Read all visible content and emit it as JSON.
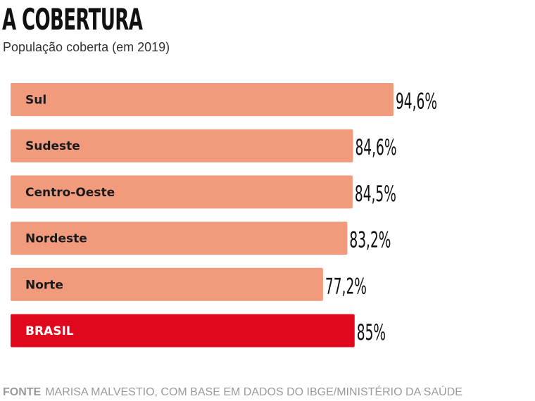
{
  "header": {
    "title": "A COBERTURA",
    "subtitle": "População coberta (em 2019)"
  },
  "footer": {
    "label": "FONTE",
    "text": "MARISA MALVESTIO, COM BASE EM DADOS DO IBGE/MINISTÉRIO DA SAÚDE"
  },
  "colors": {
    "bar": "#f29a7c",
    "highlight": "#e0081d",
    "label_dark": "#1a1a1a",
    "label_light": "#ffffff"
  },
  "chart_data": {
    "type": "bar",
    "orientation": "horizontal",
    "title": "A COBERTURA",
    "subtitle": "População coberta (em 2019)",
    "categories": [
      "Sul",
      "Sudeste",
      "Centro-Oeste",
      "Nordeste",
      "Norte",
      "BRASIL"
    ],
    "values": [
      94.6,
      84.6,
      84.5,
      83.2,
      77.2,
      85
    ],
    "value_labels": [
      "94,6%",
      "84,6%",
      "84,5%",
      "83,2%",
      "77,2%",
      "85%"
    ],
    "highlight": [
      "BRASIL"
    ],
    "unit": "%"
  }
}
